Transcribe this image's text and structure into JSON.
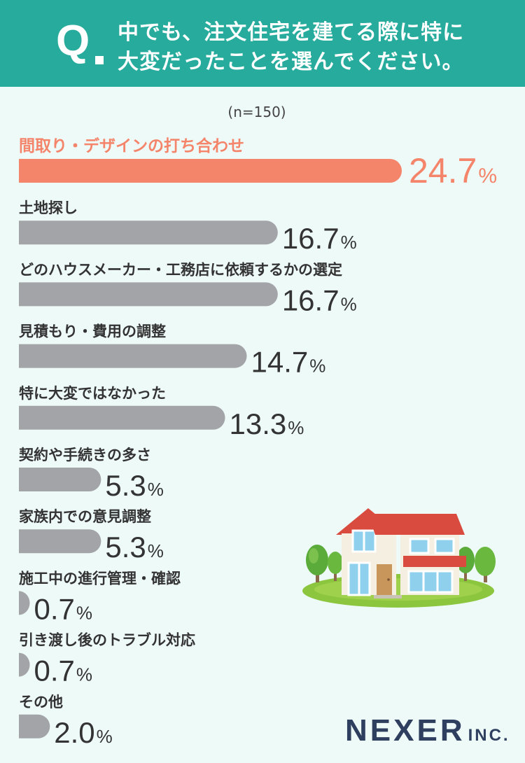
{
  "header": {
    "q": "Q",
    "line1": "中でも、注文住宅を建てる際に特に",
    "line2": "大変だったことを選んでください。"
  },
  "sample_size": "(n=150)",
  "brand": {
    "name": "NEXER",
    "suffix": "INC."
  },
  "colors": {
    "header_bg": "#27ab9c",
    "highlight": "#f4846a",
    "bar": "#a3a4a8",
    "background": "#eefaf8"
  },
  "chart_data": {
    "type": "bar",
    "orientation": "horizontal",
    "unit": "%",
    "categories": [
      "間取り・デザインの打ち合わせ",
      "土地探し",
      "どのハウスメーカー・工務店に依頼するかの選定",
      "見積もり・費用の調整",
      "特に大変ではなかった",
      "契約や手続きの多さ",
      "家族内での意見調整",
      "施工中の進行管理・確認",
      "引き渡し後のトラブル対応",
      "その他"
    ],
    "values": [
      24.7,
      16.7,
      16.7,
      14.7,
      13.3,
      5.3,
      5.3,
      0.7,
      0.7,
      2.0
    ],
    "value_labels": [
      "24.7",
      "16.7",
      "16.7",
      "14.7",
      "13.3",
      "5.3",
      "5.3",
      "0.7",
      "0.7",
      "2.0"
    ],
    "highlight_index": 0,
    "grid": false,
    "legend": "none"
  }
}
